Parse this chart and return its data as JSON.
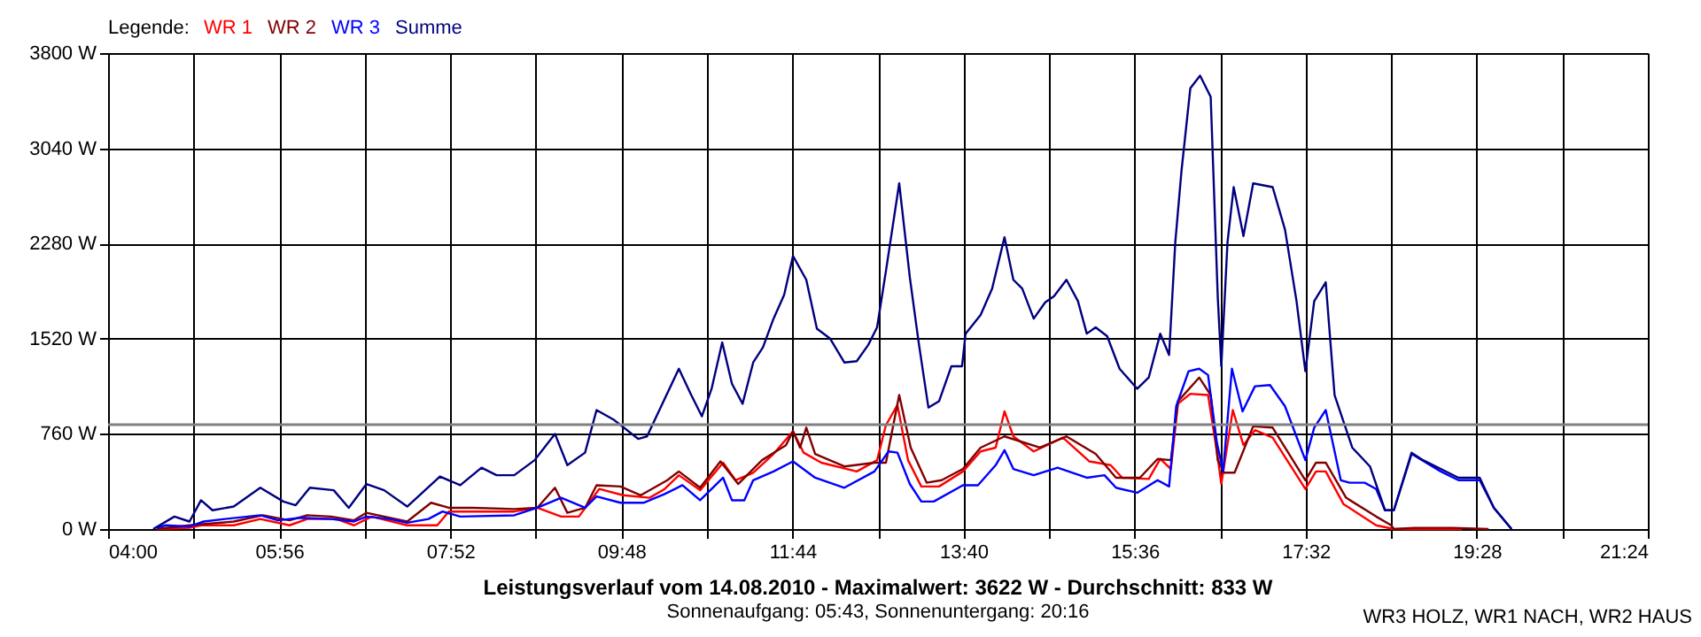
{
  "chart_data": {
    "type": "line",
    "title": "Leistungsverlauf vom 14.08.2010 - Maximalwert: 3622 W - Durchschnitt: 833 W",
    "subtitle": "Sonnenaufgang: 05:43, Sonnenuntergang: 20:16",
    "legend_title": "Legende:",
    "annotations": [
      "WR3 HOLZ, WR1 NACH, WR2 HAUS"
    ],
    "xlim": [
      4,
      21.4
    ],
    "xticks": [
      {
        "value": 4,
        "label": "04:00"
      },
      {
        "value": 4.9667,
        "label": null
      },
      {
        "value": 5.9333,
        "label": "05:56"
      },
      {
        "value": 6.9,
        "label": null
      },
      {
        "value": 7.8667,
        "label": "07:52"
      },
      {
        "value": 8.8333,
        "label": null
      },
      {
        "value": 9.8,
        "label": "09:48"
      },
      {
        "value": 10.7667,
        "label": null
      },
      {
        "value": 11.7333,
        "label": "11:44"
      },
      {
        "value": 12.7,
        "label": null
      },
      {
        "value": 13.6667,
        "label": "13:40"
      },
      {
        "value": 14.6333,
        "label": null
      },
      {
        "value": 15.6,
        "label": "15:36"
      },
      {
        "value": 16.5667,
        "label": null
      },
      {
        "value": 17.5333,
        "label": "17:32"
      },
      {
        "value": 18.5,
        "label": null
      },
      {
        "value": 19.4667,
        "label": "19:28"
      },
      {
        "value": 20.4333,
        "label": null
      },
      {
        "value": 21.4,
        "label": "21:24"
      }
    ],
    "ylim": [
      0,
      3800
    ],
    "yticks": [
      {
        "value": 0,
        "label": "0 W"
      },
      {
        "value": 760,
        "label": "760 W"
      },
      {
        "value": 1520,
        "label": "1520 W"
      },
      {
        "value": 2280,
        "label": "2280 W"
      },
      {
        "value": 3040,
        "label": "3040 W"
      },
      {
        "value": 3800,
        "label": "3800 W"
      }
    ],
    "grid": true,
    "legend": "top left",
    "marker": "none",
    "line_style": "solid",
    "ref_lines": [
      {
        "axis": "y",
        "value": 833,
        "color": "#808080"
      }
    ],
    "series": [
      {
        "name": "WR 1",
        "color": "#ff0000",
        "x": [
          4.55,
          4.92,
          5.05,
          5.42,
          5.72,
          6.05,
          6.25,
          6.58,
          6.78,
          6.98,
          7.38,
          7.72,
          7.85,
          8.12,
          8.59,
          8.85,
          9.12,
          9.32,
          9.55,
          9.82,
          10.12,
          10.29,
          10.45,
          10.69,
          10.95,
          11.09,
          11.29,
          11.52,
          11.74,
          11.86,
          12.06,
          12.46,
          12.69,
          12.79,
          12.92,
          13.04,
          13.19,
          13.39,
          13.66,
          13.86,
          14.03,
          14.13,
          14.23,
          14.46,
          14.79,
          15.09,
          15.33,
          15.46,
          15.76,
          15.89,
          16.01,
          16.09,
          16.23,
          16.43,
          16.53,
          16.58,
          16.71,
          16.83,
          16.96,
          17.16,
          17.53,
          17.65,
          17.76,
          17.96,
          18.33,
          18.53,
          19.3
        ],
        "values": [
          0,
          10,
          30,
          30,
          80,
          30,
          80,
          80,
          30,
          100,
          30,
          30,
          140,
          140,
          140,
          170,
          100,
          100,
          320,
          270,
          250,
          320,
          430,
          310,
          530,
          390,
          450,
          600,
          780,
          610,
          530,
          460,
          550,
          830,
          990,
          550,
          340,
          340,
          460,
          620,
          650,
          940,
          740,
          620,
          730,
          540,
          510,
          410,
          400,
          560,
          480,
          1000,
          1080,
          1070,
          620,
          360,
          950,
          670,
          790,
          730,
          320,
          460,
          460,
          200,
          30,
          0,
          0
        ]
      },
      {
        "name": "WR 2",
        "color": "#800000",
        "x": [
          4.55,
          4.92,
          5.42,
          5.75,
          6.05,
          6.25,
          6.52,
          6.78,
          6.92,
          7.38,
          7.65,
          7.85,
          8.12,
          8.59,
          8.85,
          9.05,
          9.19,
          9.39,
          9.52,
          9.79,
          10.02,
          10.32,
          10.45,
          10.69,
          10.92,
          11.12,
          11.39,
          11.66,
          11.74,
          11.82,
          11.89,
          11.99,
          12.32,
          12.66,
          12.79,
          12.94,
          13.07,
          13.25,
          13.42,
          13.66,
          13.86,
          14.13,
          14.53,
          14.83,
          15.16,
          15.39,
          15.66,
          15.86,
          16.01,
          16.09,
          16.33,
          16.46,
          16.54,
          16.61,
          16.73,
          16.94,
          17.16,
          17.53,
          17.65,
          17.76,
          17.99,
          18.33,
          18.5,
          18.53,
          18.76,
          19.2,
          19.6
        ],
        "values": [
          0,
          30,
          60,
          110,
          70,
          110,
          100,
          70,
          130,
          60,
          210,
          170,
          170,
          160,
          170,
          330,
          130,
          170,
          350,
          340,
          270,
          390,
          460,
          330,
          540,
          360,
          550,
          670,
          780,
          650,
          810,
          600,
          500,
          530,
          530,
          1070,
          650,
          370,
          390,
          480,
          650,
          740,
          650,
          740,
          600,
          410,
          410,
          560,
          550,
          1020,
          1210,
          1070,
          550,
          450,
          450,
          820,
          810,
          390,
          530,
          530,
          250,
          100,
          30,
          0,
          10,
          10,
          0
        ]
      },
      {
        "name": "WR 3",
        "color": "#0000ff",
        "x": [
          4.55,
          4.65,
          4.92,
          5.08,
          5.32,
          5.72,
          5.92,
          6.18,
          6.52,
          6.78,
          6.92,
          7.18,
          7.38,
          7.62,
          7.78,
          7.98,
          8.59,
          8.85,
          9.12,
          9.39,
          9.52,
          9.79,
          10.05,
          10.29,
          10.49,
          10.69,
          10.95,
          11.05,
          11.19,
          11.29,
          11.52,
          11.74,
          11.99,
          12.32,
          12.66,
          12.82,
          12.92,
          13.06,
          13.19,
          13.33,
          13.66,
          13.83,
          14.03,
          14.13,
          14.23,
          14.46,
          14.73,
          15.06,
          15.26,
          15.39,
          15.63,
          15.86,
          15.99,
          16.07,
          16.21,
          16.33,
          16.43,
          16.53,
          16.6,
          16.7,
          16.82,
          16.96,
          17.13,
          17.3,
          17.53,
          17.63,
          17.76,
          17.93,
          18.03,
          18.2,
          18.33,
          18.43,
          18.53,
          18.73,
          19.06,
          19.26,
          19.5,
          19.66,
          19.86
        ],
        "values": [
          10,
          30,
          20,
          60,
          80,
          110,
          70,
          90,
          80,
          60,
          100,
          80,
          50,
          80,
          140,
          100,
          110,
          170,
          250,
          170,
          260,
          210,
          210,
          280,
          350,
          230,
          410,
          230,
          230,
          390,
          460,
          540,
          410,
          330,
          460,
          620,
          610,
          360,
          220,
          220,
          350,
          350,
          510,
          630,
          480,
          430,
          490,
          410,
          430,
          330,
          290,
          390,
          340,
          980,
          1260,
          1280,
          1230,
          690,
          460,
          1280,
          940,
          1140,
          1150,
          980,
          550,
          810,
          950,
          390,
          370,
          370,
          320,
          150,
          150,
          600,
          460,
          390,
          390,
          170,
          0
        ]
      },
      {
        "name": "Summe",
        "color": "#000080",
        "x": [
          4.51,
          4.75,
          4.92,
          5.05,
          5.18,
          5.42,
          5.72,
          5.98,
          6.12,
          6.28,
          6.55,
          6.72,
          6.92,
          7.12,
          7.38,
          7.75,
          7.98,
          8.22,
          8.39,
          8.59,
          8.82,
          9.05,
          9.19,
          9.39,
          9.52,
          9.72,
          9.99,
          10.09,
          10.25,
          10.45,
          10.59,
          10.71,
          10.82,
          10.94,
          11.05,
          11.17,
          11.29,
          11.4,
          11.52,
          11.64,
          11.74,
          11.89,
          12.01,
          12.16,
          12.32,
          12.46,
          12.59,
          12.69,
          12.79,
          12.94,
          13.06,
          13.16,
          13.27,
          13.39,
          13.53,
          13.65,
          13.69,
          13.86,
          13.99,
          14.13,
          14.23,
          14.33,
          14.46,
          14.59,
          14.69,
          14.83,
          14.96,
          15.06,
          15.16,
          15.29,
          15.43,
          15.63,
          15.76,
          15.89,
          15.99,
          16.06,
          16.13,
          16.23,
          16.34,
          16.46,
          16.54,
          16.58,
          16.65,
          16.72,
          16.83,
          16.94,
          17.16,
          17.3,
          17.43,
          17.53,
          17.63,
          17.76,
          17.86,
          18.06,
          18.26,
          18.43,
          18.53,
          18.73,
          18.86,
          19.06,
          19.26,
          19.5,
          19.66,
          19.86
        ],
        "values": [
          0,
          100,
          60,
          230,
          150,
          180,
          330,
          220,
          190,
          330,
          310,
          170,
          360,
          310,
          180,
          420,
          350,
          490,
          430,
          430,
          550,
          760,
          510,
          610,
          950,
          870,
          720,
          740,
          980,
          1280,
          1070,
          900,
          1120,
          1490,
          1160,
          1000,
          1330,
          1450,
          1680,
          1870,
          2180,
          1990,
          1600,
          1520,
          1330,
          1340,
          1470,
          1610,
          2060,
          2760,
          2010,
          1490,
          970,
          1020,
          1300,
          1300,
          1560,
          1710,
          1920,
          2330,
          1990,
          1920,
          1680,
          1810,
          1860,
          1990,
          1820,
          1560,
          1610,
          1540,
          1280,
          1120,
          1210,
          1560,
          1390,
          2290,
          2860,
          3520,
          3620,
          3450,
          1850,
          1300,
          2290,
          2730,
          2340,
          2760,
          2730,
          2390,
          1820,
          1260,
          1820,
          1970,
          1070,
          650,
          500,
          150,
          150,
          610,
          550,
          480,
          410,
          410,
          170,
          0
        ]
      }
    ]
  }
}
